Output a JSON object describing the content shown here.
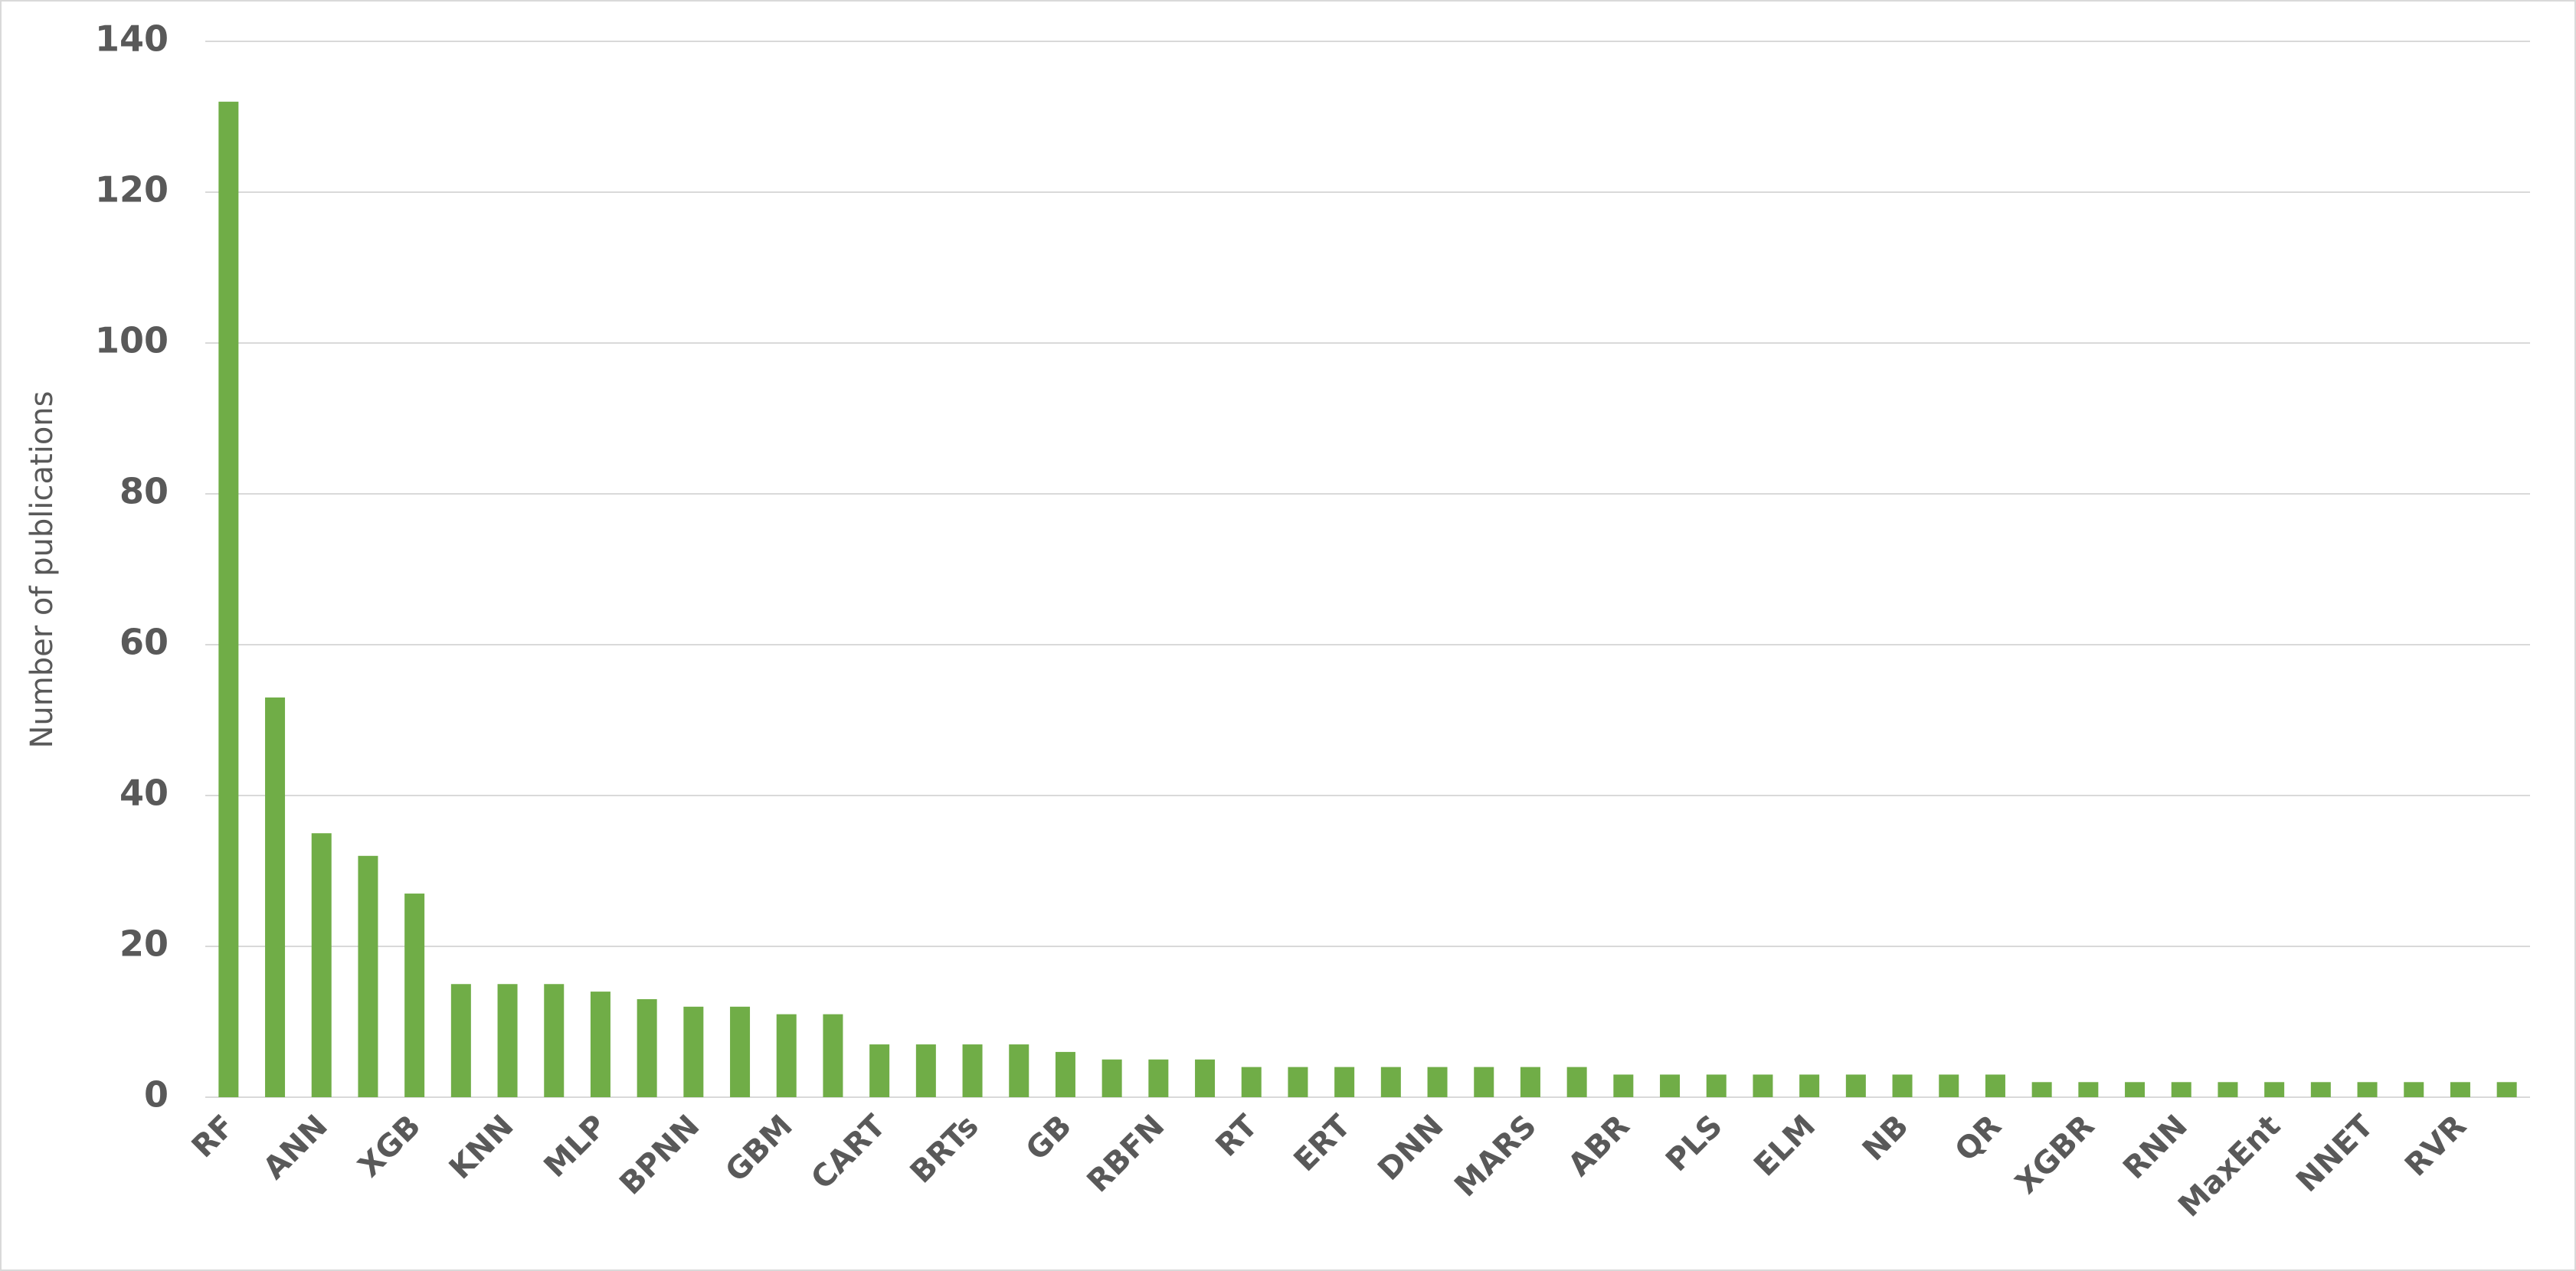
{
  "chart_data": {
    "type": "bar",
    "y_label": "Number of publications",
    "categories": [
      "RF",
      null,
      "ANN",
      null,
      "XGB",
      null,
      "KNN",
      null,
      "MLP",
      null,
      "BPNN",
      null,
      "GBM",
      null,
      "CART",
      null,
      "BRTs",
      null,
      "GB",
      null,
      "RBFN",
      null,
      "RT",
      null,
      "ERT",
      null,
      "DNN",
      null,
      "MARS",
      null,
      "ABR",
      null,
      "PLS",
      null,
      "ELM",
      null,
      "NB",
      null,
      "QR",
      null,
      "XGBR",
      null,
      "RNN",
      null,
      "MaxEnt",
      null,
      "NNET",
      null,
      "RVR",
      null
    ],
    "values": [
      132,
      53,
      35,
      32,
      27,
      15,
      15,
      15,
      14,
      13,
      12,
      12,
      11,
      11,
      7,
      7,
      7,
      7,
      6,
      5,
      5,
      5,
      4,
      4,
      4,
      4,
      4,
      4,
      4,
      4,
      3,
      3,
      3,
      3,
      3,
      3,
      3,
      3,
      3,
      2,
      2,
      2,
      2,
      2,
      2,
      2,
      2,
      2,
      2,
      2
    ],
    "color": "#70ad47",
    "ylim": [
      0,
      140
    ],
    "yticks": [
      0,
      20,
      40,
      60,
      80,
      100,
      120,
      140
    ],
    "grid": true
  }
}
